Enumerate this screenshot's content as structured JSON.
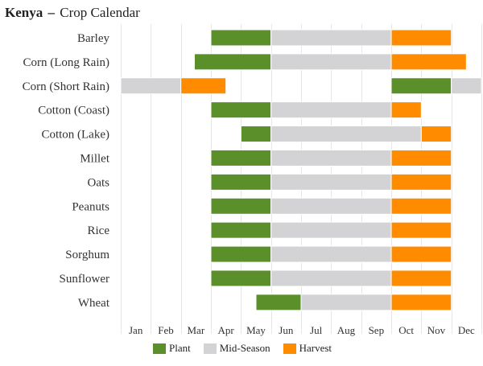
{
  "header": {
    "country": "Kenya",
    "separator": "–",
    "subtitle": "Crop Calendar"
  },
  "colors": {
    "plant": "#5a8f29",
    "mid_season": "#d3d2d4",
    "harvest": "#ff8c00",
    "grid": "#e6e6e6"
  },
  "legend": [
    {
      "key": "plant",
      "label": "Plant"
    },
    {
      "key": "mid_season",
      "label": "Mid-Season"
    },
    {
      "key": "harvest",
      "label": "Harvest"
    }
  ],
  "chart_data": {
    "type": "bar",
    "orientation": "horizontal",
    "title": "Kenya – Crop Calendar",
    "x_unit": "month",
    "xlim": [
      0,
      12
    ],
    "months": [
      "Jan",
      "Feb",
      "Mar",
      "Apr",
      "May",
      "Jun",
      "Jul",
      "Aug",
      "Sep",
      "Oct",
      "Nov",
      "Dec"
    ],
    "grid": true,
    "legend_position": "bottom",
    "crops": [
      {
        "name": "Barley",
        "segments": [
          {
            "stage": "plant",
            "start": 3.0,
            "end": 5.0
          },
          {
            "stage": "mid_season",
            "start": 5.0,
            "end": 9.0
          },
          {
            "stage": "harvest",
            "start": 9.0,
            "end": 11.0
          }
        ]
      },
      {
        "name": "Corn (Long Rain)",
        "segments": [
          {
            "stage": "plant",
            "start": 2.45,
            "end": 5.0
          },
          {
            "stage": "mid_season",
            "start": 5.0,
            "end": 9.0
          },
          {
            "stage": "harvest",
            "start": 9.0,
            "end": 11.5
          }
        ]
      },
      {
        "name": "Corn (Short Rain)",
        "segments": [
          {
            "stage": "mid_season",
            "start": 0.0,
            "end": 2.0
          },
          {
            "stage": "harvest",
            "start": 2.0,
            "end": 3.5
          },
          {
            "stage": "plant",
            "start": 9.0,
            "end": 11.0
          },
          {
            "stage": "mid_season",
            "start": 11.0,
            "end": 12.0
          }
        ]
      },
      {
        "name": "Cotton (Coast)",
        "segments": [
          {
            "stage": "plant",
            "start": 3.0,
            "end": 5.0
          },
          {
            "stage": "mid_season",
            "start": 5.0,
            "end": 9.0
          },
          {
            "stage": "harvest",
            "start": 9.0,
            "end": 10.0
          }
        ]
      },
      {
        "name": "Cotton (Lake)",
        "segments": [
          {
            "stage": "plant",
            "start": 4.0,
            "end": 5.0
          },
          {
            "stage": "mid_season",
            "start": 5.0,
            "end": 10.0
          },
          {
            "stage": "harvest",
            "start": 10.0,
            "end": 11.0
          }
        ]
      },
      {
        "name": "Millet",
        "segments": [
          {
            "stage": "plant",
            "start": 3.0,
            "end": 5.0
          },
          {
            "stage": "mid_season",
            "start": 5.0,
            "end": 9.0
          },
          {
            "stage": "harvest",
            "start": 9.0,
            "end": 11.0
          }
        ]
      },
      {
        "name": "Oats",
        "segments": [
          {
            "stage": "plant",
            "start": 3.0,
            "end": 5.0
          },
          {
            "stage": "mid_season",
            "start": 5.0,
            "end": 9.0
          },
          {
            "stage": "harvest",
            "start": 9.0,
            "end": 11.0
          }
        ]
      },
      {
        "name": "Peanuts",
        "segments": [
          {
            "stage": "plant",
            "start": 3.0,
            "end": 5.0
          },
          {
            "stage": "mid_season",
            "start": 5.0,
            "end": 9.0
          },
          {
            "stage": "harvest",
            "start": 9.0,
            "end": 11.0
          }
        ]
      },
      {
        "name": "Rice",
        "segments": [
          {
            "stage": "plant",
            "start": 3.0,
            "end": 5.0
          },
          {
            "stage": "mid_season",
            "start": 5.0,
            "end": 9.0
          },
          {
            "stage": "harvest",
            "start": 9.0,
            "end": 11.0
          }
        ]
      },
      {
        "name": "Sorghum",
        "segments": [
          {
            "stage": "plant",
            "start": 3.0,
            "end": 5.0
          },
          {
            "stage": "mid_season",
            "start": 5.0,
            "end": 9.0
          },
          {
            "stage": "harvest",
            "start": 9.0,
            "end": 11.0
          }
        ]
      },
      {
        "name": "Sunflower",
        "segments": [
          {
            "stage": "plant",
            "start": 3.0,
            "end": 5.0
          },
          {
            "stage": "mid_season",
            "start": 5.0,
            "end": 9.0
          },
          {
            "stage": "harvest",
            "start": 9.0,
            "end": 11.0
          }
        ]
      },
      {
        "name": "Wheat",
        "segments": [
          {
            "stage": "plant",
            "start": 4.5,
            "end": 6.0
          },
          {
            "stage": "mid_season",
            "start": 6.0,
            "end": 9.0
          },
          {
            "stage": "harvest",
            "start": 9.0,
            "end": 11.0
          }
        ]
      }
    ]
  }
}
